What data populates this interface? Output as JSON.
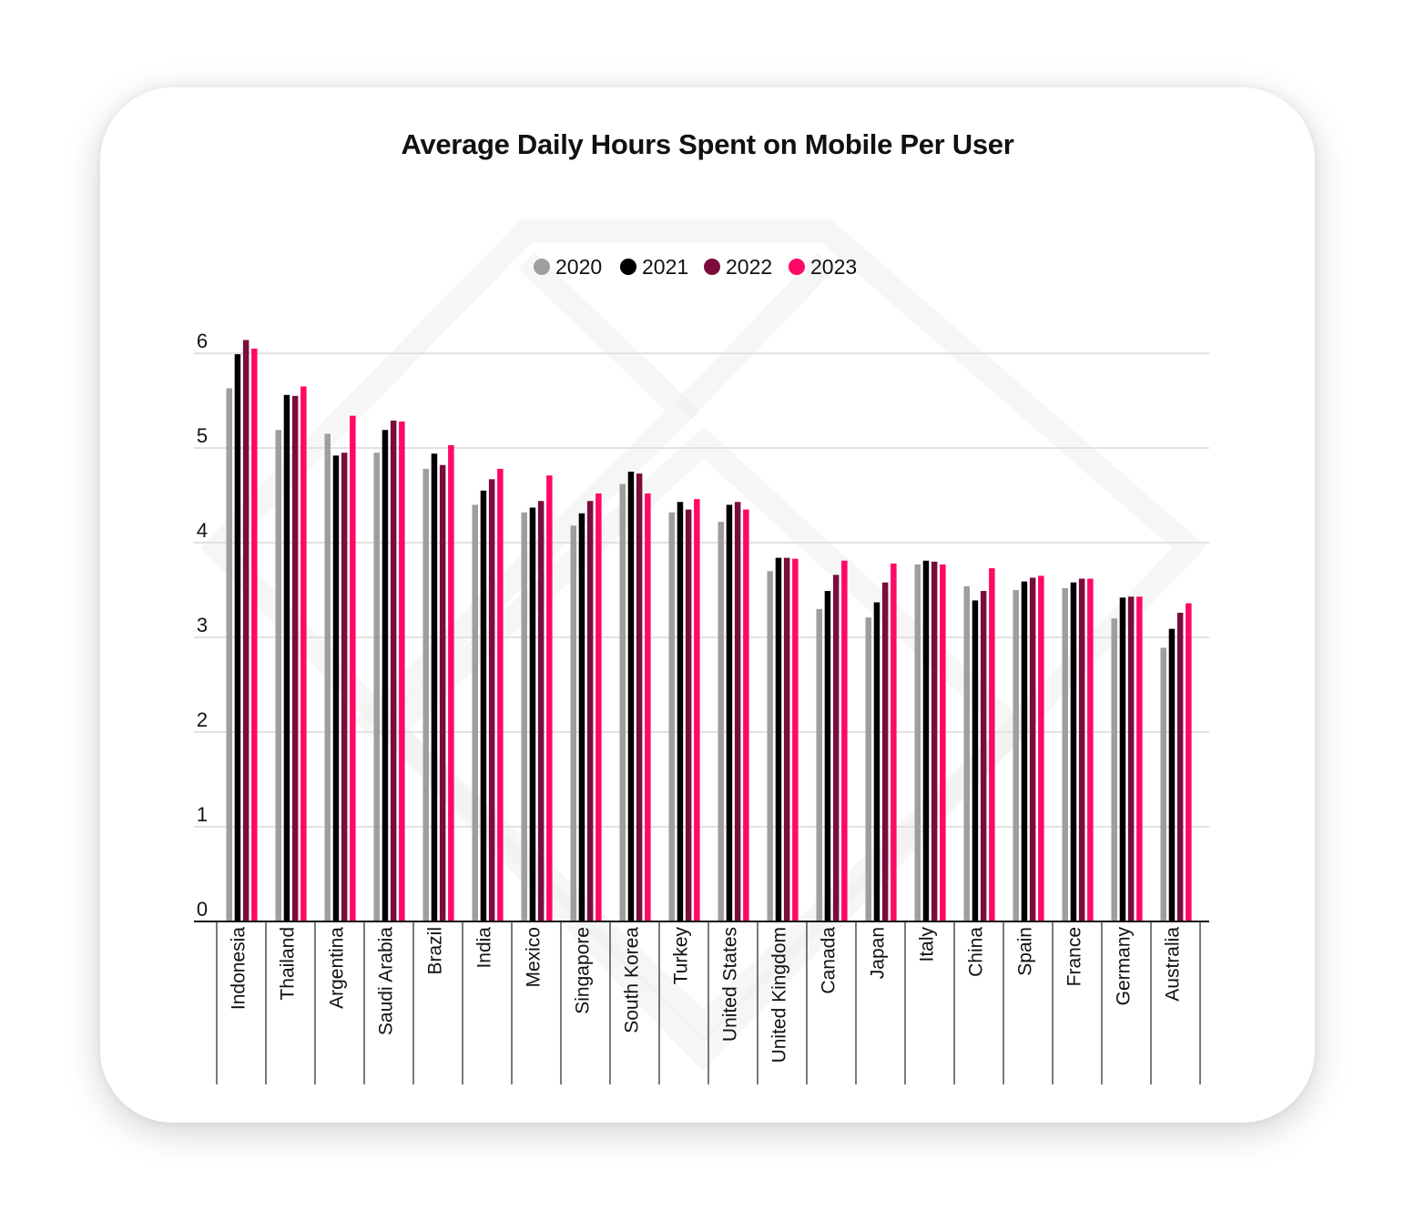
{
  "chart_data": {
    "type": "bar",
    "title": "Average Daily Hours Spent on Mobile Per User",
    "xlabel": "",
    "ylabel": "",
    "ylim": [
      0,
      6
    ],
    "yticks": [
      "0",
      "1",
      "2",
      "3",
      "4",
      "5",
      "6"
    ],
    "grid": true,
    "legend_position": "top-center",
    "categories": [
      "Indonesia",
      "Thailand",
      "Argentina",
      "Saudi Arabia",
      "Brazil",
      "India",
      "Mexico",
      "Singapore",
      "South Korea",
      "Turkey",
      "United States",
      "United Kingdom",
      "Canada",
      "Japan",
      "Italy",
      "China",
      "Spain",
      "France",
      "Germany",
      "Australia"
    ],
    "series": [
      {
        "name": "2020",
        "color": "#9e9e9e",
        "values": [
          5.63,
          5.19,
          5.15,
          4.95,
          4.78,
          4.4,
          4.32,
          4.18,
          4.62,
          4.32,
          4.22,
          3.7,
          3.3,
          3.21,
          3.77,
          3.54,
          3.5,
          3.52,
          3.2,
          2.89
        ]
      },
      {
        "name": "2021",
        "color": "#000000",
        "values": [
          5.99,
          5.56,
          4.92,
          5.19,
          4.94,
          4.55,
          4.37,
          4.31,
          4.75,
          4.43,
          4.4,
          3.84,
          3.49,
          3.37,
          3.81,
          3.39,
          3.59,
          3.58,
          3.42,
          3.09
        ]
      },
      {
        "name": "2022",
        "color": "#7a0d3b",
        "values": [
          6.14,
          5.55,
          4.95,
          5.29,
          4.82,
          4.67,
          4.44,
          4.44,
          4.73,
          4.35,
          4.43,
          3.84,
          3.66,
          3.58,
          3.8,
          3.49,
          3.63,
          3.62,
          3.43,
          3.26
        ]
      },
      {
        "name": "2023",
        "color": "#ff0866",
        "values": [
          6.05,
          5.65,
          5.34,
          5.28,
          5.03,
          4.78,
          4.71,
          4.52,
          4.52,
          4.46,
          4.35,
          3.83,
          3.81,
          3.78,
          3.77,
          3.73,
          3.65,
          3.62,
          3.43,
          3.36
        ]
      }
    ]
  }
}
